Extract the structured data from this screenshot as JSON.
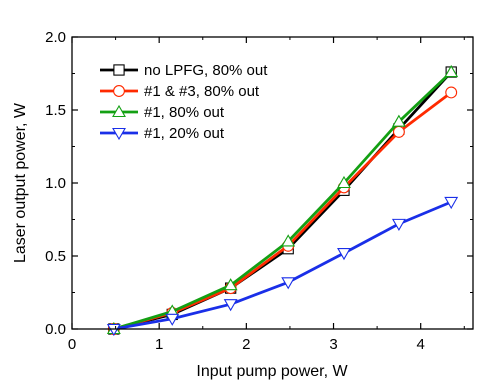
{
  "chart_data": {
    "type": "line",
    "title": "",
    "xlabel": "Input pump power, W",
    "ylabel": "Laser output power, W",
    "xlim": [
      0,
      4.6
    ],
    "ylim": [
      0,
      2.0
    ],
    "x_ticks": [
      "0",
      "1",
      "2",
      "3",
      "4"
    ],
    "y_ticks": [
      "0.0",
      "0.5",
      "1.0",
      "1.5",
      "2.0"
    ],
    "x_tick_values": [
      0,
      1,
      2,
      3,
      4
    ],
    "y_tick_values": [
      0,
      0.5,
      1.0,
      1.5,
      2.0
    ],
    "grid": false,
    "legend_position": "top-left",
    "series": [
      {
        "name": "no LPFG, 80% out",
        "color": "#000000",
        "marker": "square",
        "x": [
          0.48,
          1.15,
          1.82,
          2.48,
          3.12,
          3.75,
          4.35
        ],
        "y": [
          0.0,
          0.1,
          0.28,
          0.55,
          0.95,
          1.37,
          1.76
        ]
      },
      {
        "name": "#1 & #3, 80% out",
        "color": "#ff2a00",
        "marker": "circle",
        "x": [
          0.48,
          1.15,
          1.82,
          2.48,
          3.12,
          3.75,
          4.35
        ],
        "y": [
          0.0,
          0.11,
          0.28,
          0.57,
          0.97,
          1.35,
          1.62
        ]
      },
      {
        "name": "#1, 80% out",
        "color": "#13a013",
        "marker": "triangle-up",
        "x": [
          0.48,
          1.15,
          1.82,
          2.48,
          3.12,
          3.75,
          4.35
        ],
        "y": [
          0.0,
          0.12,
          0.3,
          0.6,
          1.0,
          1.42,
          1.76
        ]
      },
      {
        "name": "#1, 20% out",
        "color": "#1a2fe8",
        "marker": "triangle-down",
        "x": [
          0.48,
          1.15,
          1.82,
          2.48,
          3.12,
          3.75,
          4.35
        ],
        "y": [
          0.0,
          0.07,
          0.17,
          0.32,
          0.52,
          0.72,
          0.87
        ]
      }
    ]
  }
}
